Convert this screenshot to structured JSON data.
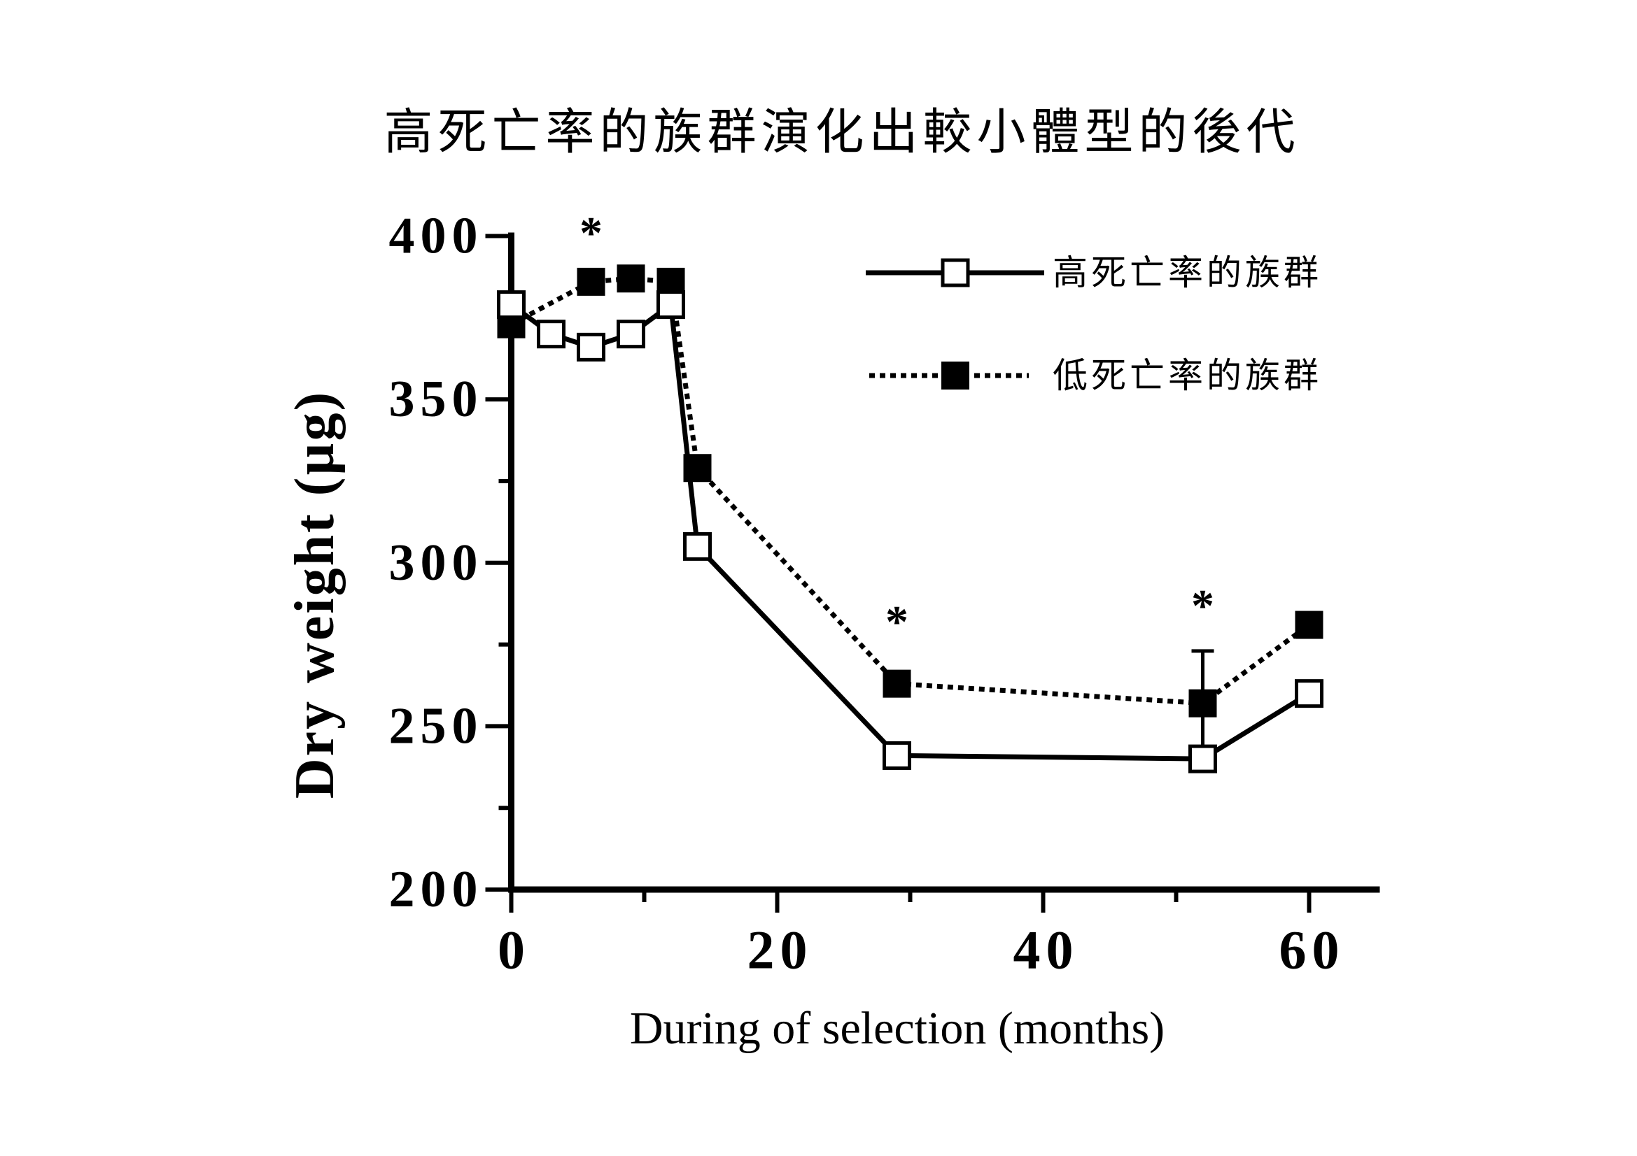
{
  "chart_data": {
    "type": "line",
    "title": "高死亡率的族群演化出較小體型的後代",
    "xlabel": "During of selection (months)",
    "ylabel": "Dry weight (µg)",
    "xlim": [
      0,
      65
    ],
    "ylim": [
      200,
      400
    ],
    "xticks": [
      0,
      20,
      40,
      60
    ],
    "xminor_ticks": [
      10,
      30,
      50
    ],
    "yticks": [
      200,
      250,
      300,
      350,
      400
    ],
    "yminor_ticks": [
      225,
      275,
      325,
      375
    ],
    "grid": false,
    "legend": "top-right",
    "series": [
      {
        "name": "高死亡率的族群",
        "dotted": false,
        "marker_fill": "#ffffff",
        "x": [
          0,
          3,
          6,
          9,
          12,
          14,
          29,
          52,
          60
        ],
        "y": [
          379,
          370,
          366,
          370,
          379,
          305,
          241,
          240,
          260
        ]
      },
      {
        "name": "低死亡率的族群",
        "dotted": true,
        "marker_fill": "#000000",
        "x": [
          0,
          6,
          9,
          12,
          14,
          29,
          52,
          60
        ],
        "y": [
          373,
          386,
          387,
          386,
          329,
          263,
          257,
          281
        ],
        "error_bars": [
          {
            "x": 52,
            "low": 244,
            "high": 273
          }
        ]
      }
    ],
    "annotations": [
      {
        "text": "*",
        "x": 6,
        "y": 403
      },
      {
        "text": "*",
        "x": 29,
        "y": 284
      },
      {
        "text": "*",
        "x": 52,
        "y": 289
      }
    ],
    "colors": {
      "ink": "#000000",
      "paper": "#ffffff"
    }
  }
}
